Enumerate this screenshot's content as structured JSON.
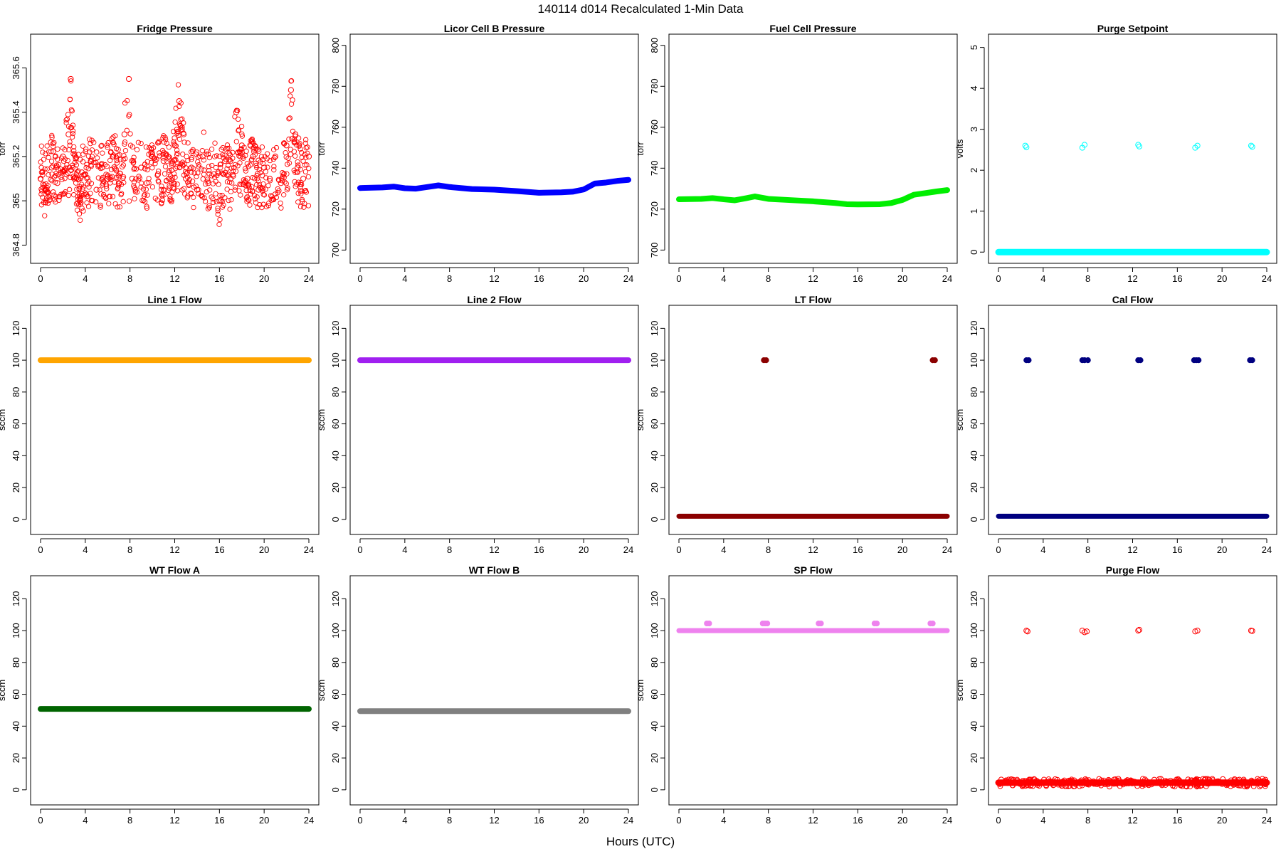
{
  "figure": {
    "title": "140114   d014   Recalculated 1-Min Data",
    "xlabel": "Hours (UTC)"
  },
  "chart_data": [
    {
      "type": "scatter",
      "title": "Fridge Pressure",
      "ylabel": "torr",
      "color": "#ff0000",
      "marker": "open",
      "xlim": [
        0,
        24
      ],
      "ylim": [
        364.75,
        365.72
      ],
      "xticks": [
        0,
        4,
        8,
        12,
        16,
        20,
        24
      ],
      "yticks": [
        364.8,
        365.0,
        365.2,
        365.4,
        365.6
      ],
      "series": [
        {
          "x": [
            0,
            0.5,
            1,
            1.5,
            2,
            2.5,
            2.7,
            3,
            3.5,
            4,
            4.5,
            5,
            5.5,
            6,
            6.5,
            7,
            7.5,
            7.9,
            8.2,
            8.5,
            9,
            9.5,
            10,
            10.5,
            11,
            11.5,
            12,
            12.4,
            12.8,
            13,
            13.5,
            14,
            14.5,
            15,
            15.5,
            16,
            16.5,
            17,
            17.5,
            18,
            18.5,
            19,
            19.5,
            20,
            20.5,
            21,
            21.5,
            22,
            22.4,
            22.8,
            23,
            23.5,
            24
          ],
          "y": [
            365.1,
            365.05,
            365.15,
            365.08,
            365.2,
            365.3,
            365.55,
            365.1,
            365.0,
            365.12,
            365.18,
            365.05,
            365.15,
            365.1,
            365.2,
            365.08,
            365.3,
            365.55,
            365.1,
            365.05,
            365.15,
            365.08,
            365.2,
            365.12,
            365.18,
            365.1,
            365.25,
            365.45,
            365.3,
            365.1,
            365.15,
            365.05,
            365.2,
            365.08,
            365.12,
            365.0,
            365.18,
            365.1,
            365.4,
            365.25,
            365.1,
            365.2,
            365.05,
            365.15,
            365.1,
            365.2,
            365.08,
            365.25,
            365.5,
            365.3,
            365.15,
            365.1,
            365.2
          ]
        }
      ]
    },
    {
      "type": "line",
      "title": "Licor Cell B Pressure",
      "ylabel": "torr",
      "color": "#0000ff",
      "marker": "filled",
      "xlim": [
        0,
        24
      ],
      "ylim": [
        697,
        802
      ],
      "xticks": [
        0,
        4,
        8,
        12,
        16,
        20,
        24
      ],
      "yticks": [
        700,
        720,
        740,
        760,
        780,
        800
      ],
      "series": [
        {
          "x": [
            0,
            2,
            3,
            4,
            5,
            6,
            7,
            8,
            10,
            12,
            14,
            16,
            18,
            19,
            20,
            21,
            22,
            23,
            24
          ],
          "y": [
            730.3,
            730.6,
            731.0,
            730.2,
            730.0,
            730.8,
            731.6,
            730.8,
            729.8,
            729.5,
            728.8,
            728.0,
            728.2,
            728.5,
            729.6,
            732.5,
            733.0,
            733.8,
            734.3
          ]
        }
      ]
    },
    {
      "type": "line",
      "title": "Fuel Cell Pressure",
      "ylabel": "torr",
      "color": "#00ee00",
      "marker": "filled",
      "xlim": [
        0,
        24
      ],
      "ylim": [
        697,
        802
      ],
      "xticks": [
        0,
        4,
        8,
        12,
        16,
        20,
        24
      ],
      "yticks": [
        700,
        720,
        740,
        760,
        780,
        800
      ],
      "series": [
        {
          "x": [
            0,
            2,
            3,
            4,
            5,
            6,
            6.8,
            8,
            10,
            12,
            14,
            15,
            16,
            18,
            19,
            20,
            21,
            22,
            23,
            24
          ],
          "y": [
            724.8,
            725.0,
            725.4,
            724.8,
            724.3,
            725.3,
            726.2,
            725.0,
            724.4,
            723.8,
            723.0,
            722.4,
            722.3,
            722.4,
            723.0,
            724.5,
            727.0,
            727.8,
            728.6,
            729.3
          ]
        }
      ]
    },
    {
      "type": "scatter",
      "title": "Purge Setpoint",
      "ylabel": "volts",
      "color": "#00ffff",
      "marker": "open",
      "xlim": [
        0,
        24
      ],
      "ylim": [
        -0.1,
        5.15
      ],
      "xticks": [
        0,
        4,
        8,
        12,
        16,
        20,
        24
      ],
      "yticks": [
        0,
        1,
        2,
        3,
        4,
        5
      ],
      "baseline": {
        "y": 0
      },
      "series": [
        {
          "x": [
            2.4,
            2.5,
            7.5,
            7.7,
            12.5,
            12.6,
            17.6,
            17.8,
            22.6,
            22.7
          ],
          "y": [
            2.6,
            2.56,
            2.55,
            2.62,
            2.62,
            2.58,
            2.55,
            2.6,
            2.6,
            2.57
          ]
        }
      ]
    },
    {
      "type": "line",
      "title": "Line 1 Flow",
      "ylabel": "sccm",
      "color": "#ffa500",
      "marker": "filled",
      "xlim": [
        0,
        24
      ],
      "ylim": [
        -5,
        130
      ],
      "xticks": [
        0,
        4,
        8,
        12,
        16,
        20,
        24
      ],
      "yticks": [
        0,
        20,
        40,
        60,
        80,
        100,
        120
      ],
      "series": [
        {
          "x": [
            0,
            24
          ],
          "y": [
            100,
            100
          ]
        }
      ]
    },
    {
      "type": "line",
      "title": "Line 2 Flow",
      "ylabel": "sccm",
      "color": "#a020f0",
      "marker": "filled",
      "xlim": [
        0,
        24
      ],
      "ylim": [
        -5,
        130
      ],
      "xticks": [
        0,
        4,
        8,
        12,
        16,
        20,
        24
      ],
      "yticks": [
        0,
        20,
        40,
        60,
        80,
        100,
        120
      ],
      "series": [
        {
          "x": [
            0,
            24
          ],
          "y": [
            100,
            100
          ]
        }
      ]
    },
    {
      "type": "scatter",
      "title": "LT Flow",
      "ylabel": "sccm",
      "color": "#8b0000",
      "marker": "filled",
      "xlim": [
        0,
        24
      ],
      "ylim": [
        -5,
        130
      ],
      "xticks": [
        0,
        4,
        8,
        12,
        16,
        20,
        24
      ],
      "yticks": [
        0,
        20,
        40,
        60,
        80,
        100,
        120
      ],
      "baseline": {
        "y": 2
      },
      "series": [
        {
          "x": [
            7.6,
            7.8,
            22.7,
            22.9
          ],
          "y": [
            100,
            100,
            100,
            100
          ]
        }
      ]
    },
    {
      "type": "scatter",
      "title": "Cal Flow",
      "ylabel": "sccm",
      "color": "#000080",
      "marker": "filled",
      "xlim": [
        0,
        24
      ],
      "ylim": [
        -5,
        130
      ],
      "xticks": [
        0,
        4,
        8,
        12,
        16,
        20,
        24
      ],
      "yticks": [
        0,
        20,
        40,
        60,
        80,
        100,
        120
      ],
      "baseline": {
        "y": 2
      },
      "series": [
        {
          "x": [
            2.5,
            2.7,
            7.5,
            7.7,
            8.0,
            12.5,
            12.7,
            17.5,
            17.7,
            17.9,
            22.5,
            22.7
          ],
          "y": [
            100,
            100,
            100,
            100,
            100,
            100,
            100,
            100,
            100,
            100,
            100,
            100
          ]
        }
      ]
    },
    {
      "type": "line",
      "title": "WT Flow A",
      "ylabel": "sccm",
      "color": "#006400",
      "marker": "filled",
      "xlim": [
        0,
        24
      ],
      "ylim": [
        -5,
        130
      ],
      "xticks": [
        0,
        4,
        8,
        12,
        16,
        20,
        24
      ],
      "yticks": [
        0,
        20,
        40,
        60,
        80,
        100,
        120
      ],
      "series": [
        {
          "x": [
            0,
            24
          ],
          "y": [
            50.8,
            50.8
          ]
        }
      ]
    },
    {
      "type": "line",
      "title": "WT Flow B",
      "ylabel": "sccm",
      "color": "#808080",
      "marker": "filled",
      "xlim": [
        0,
        24
      ],
      "ylim": [
        -5,
        130
      ],
      "xticks": [
        0,
        4,
        8,
        12,
        16,
        20,
        24
      ],
      "yticks": [
        0,
        20,
        40,
        60,
        80,
        100,
        120
      ],
      "series": [
        {
          "x": [
            0,
            24
          ],
          "y": [
            49.4,
            49.4
          ]
        }
      ]
    },
    {
      "type": "scatter",
      "title": "SP Flow",
      "ylabel": "sccm",
      "color": "#ee82ee",
      "marker": "filled",
      "xlim": [
        0,
        24
      ],
      "ylim": [
        -5,
        130
      ],
      "xticks": [
        0,
        4,
        8,
        12,
        16,
        20,
        24
      ],
      "yticks": [
        0,
        20,
        40,
        60,
        80,
        100,
        120
      ],
      "baseline": {
        "y": 100
      },
      "series": [
        {
          "x": [
            2.5,
            2.7,
            7.5,
            7.7,
            7.9,
            12.5,
            12.7,
            17.5,
            17.7,
            22.5,
            22.7
          ],
          "y": [
            104.5,
            104.5,
            104.5,
            104.5,
            104.5,
            104.5,
            104.5,
            104.5,
            104.5,
            104.5,
            104.5
          ]
        }
      ]
    },
    {
      "type": "scatter",
      "title": "Purge Flow",
      "ylabel": "sccm",
      "color": "#ff0000",
      "marker": "open",
      "xlim": [
        0,
        24
      ],
      "ylim": [
        -5,
        130
      ],
      "xticks": [
        0,
        4,
        8,
        12,
        16,
        20,
        24
      ],
      "yticks": [
        0,
        20,
        40,
        60,
        80,
        100,
        120
      ],
      "baseline": {
        "y": 4.5
      },
      "series": [
        {
          "x": [
            2.5,
            2.6,
            7.5,
            7.7,
            7.9,
            12.5,
            12.6,
            17.6,
            17.8,
            22.6,
            22.7
          ],
          "y": [
            100,
            99.5,
            100,
            99,
            99.5,
            100,
            100.5,
            99.5,
            100,
            100,
            99.8
          ]
        }
      ]
    }
  ]
}
